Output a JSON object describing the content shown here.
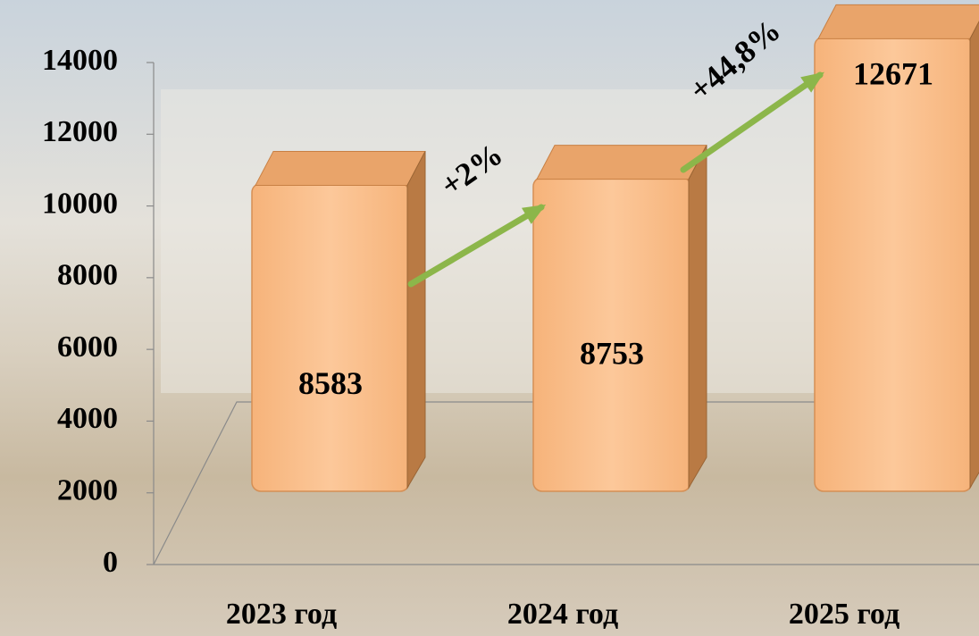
{
  "chart_data": {
    "type": "bar3d",
    "categories": [
      "2023 год",
      "2024 год",
      "2025 год"
    ],
    "values": [
      8583,
      8753,
      12671
    ],
    "color": "#f9c08a",
    "ylim": [
      0,
      14000
    ],
    "yticks": [
      0,
      2000,
      4000,
      6000,
      8000,
      10000,
      12000,
      14000
    ],
    "annotations": [
      "+2%",
      "+44,8%"
    ]
  }
}
